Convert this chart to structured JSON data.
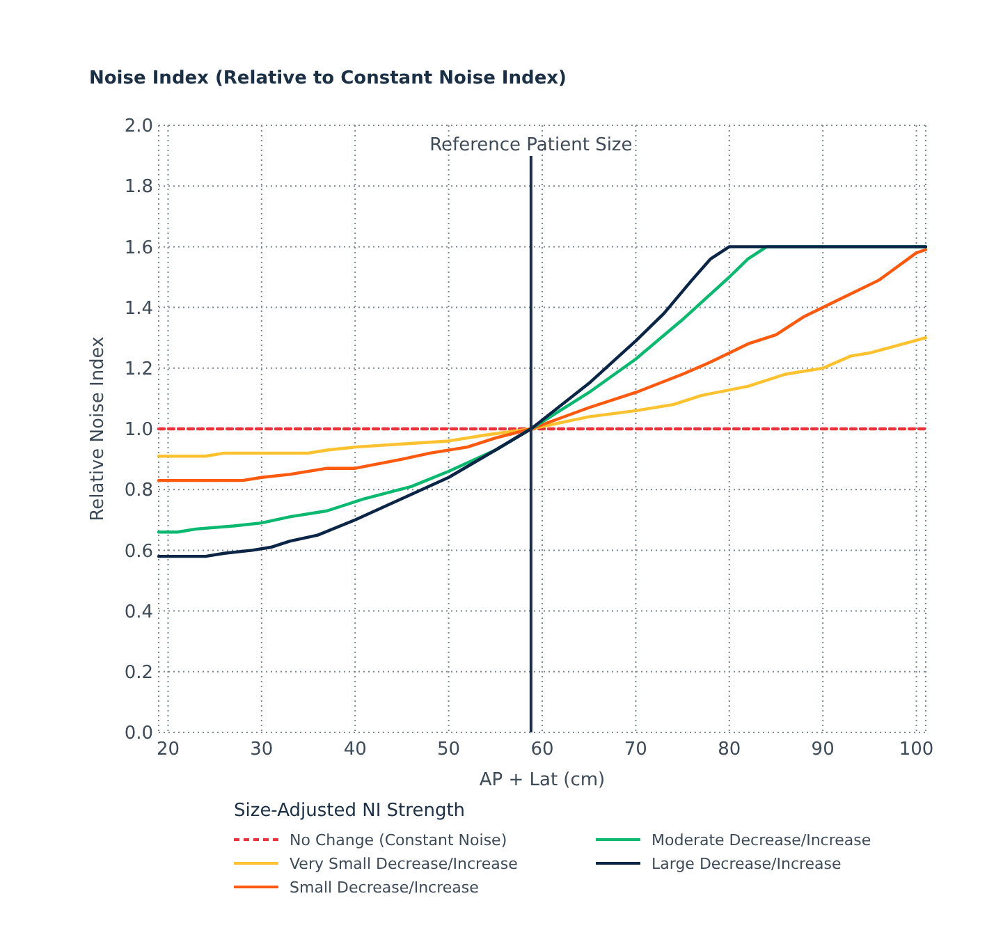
{
  "chart_data": {
    "type": "line",
    "title": "Noise Index (Relative to Constant Noise Index)",
    "xlabel": "AP + Lat (cm)",
    "ylabel": "Relative Noise Index",
    "legend_title": "Size-Adjusted NI Strength",
    "legend": "bottom",
    "grid": true,
    "xlim": [
      19,
      101
    ],
    "ylim": [
      0,
      2
    ],
    "xticks": [
      20,
      30,
      40,
      50,
      60,
      70,
      80,
      90,
      100
    ],
    "yticks": [
      {
        "value": 0,
        "label": "0.0"
      },
      {
        "value": 0.2,
        "label": "0.2"
      },
      {
        "value": 0.4,
        "label": "0.4"
      },
      {
        "value": 0.6,
        "label": "0.6"
      },
      {
        "value": 0.8,
        "label": "0.8"
      },
      {
        "value": 1,
        "label": "1.0"
      },
      {
        "value": 1.2,
        "label": "1.2"
      },
      {
        "value": 1.4,
        "label": "1.4"
      },
      {
        "value": 1.6,
        "label": "1.6"
      },
      {
        "value": 1.8,
        "label": "1.8"
      },
      {
        "value": 2,
        "label": "2.0"
      }
    ],
    "ref_lines": [
      {
        "axis": "x",
        "value": 58.8,
        "label": "Reference Patient Size",
        "color": "#1b2f45"
      }
    ],
    "series": [
      {
        "name": "No Change (Constant Noise)",
        "color": "#e8323c",
        "line_style": "dashed",
        "x": [
          19,
          101
        ],
        "values": [
          1.0,
          1.0
        ]
      },
      {
        "name": "Very Small Decrease/Increase",
        "color": "#fec230",
        "line_style": "solid",
        "x": [
          19,
          24,
          26,
          35,
          37,
          40,
          45,
          50,
          54,
          58.8,
          65,
          70,
          74,
          77,
          82,
          86,
          90,
          93,
          95,
          101
        ],
        "values": [
          0.91,
          0.91,
          0.92,
          0.92,
          0.93,
          0.94,
          0.95,
          0.96,
          0.98,
          1.0,
          1.04,
          1.06,
          1.08,
          1.11,
          1.14,
          1.18,
          1.2,
          1.24,
          1.25,
          1.3
        ]
      },
      {
        "name": "Small Decrease/Increase",
        "color": "#fe5a0f",
        "line_style": "solid",
        "x": [
          19,
          28,
          30,
          33,
          37,
          40,
          45,
          48,
          52,
          55,
          58.8,
          65,
          70,
          75,
          78,
          82,
          85,
          88,
          92,
          96,
          100,
          101
        ],
        "values": [
          0.83,
          0.83,
          0.84,
          0.85,
          0.87,
          0.87,
          0.9,
          0.92,
          0.94,
          0.97,
          1.0,
          1.07,
          1.12,
          1.18,
          1.22,
          1.28,
          1.31,
          1.37,
          1.43,
          1.49,
          1.58,
          1.59
        ]
      },
      {
        "name": "Moderate Decrease/Increase",
        "color": "#0ab870",
        "line_style": "solid",
        "x": [
          19,
          21,
          23,
          27,
          30,
          33,
          37,
          41,
          46,
          50,
          55,
          58.8,
          65,
          70,
          75,
          80,
          82,
          84,
          101
        ],
        "values": [
          0.66,
          0.66,
          0.67,
          0.68,
          0.69,
          0.71,
          0.73,
          0.77,
          0.81,
          0.86,
          0.93,
          1.0,
          1.12,
          1.23,
          1.36,
          1.5,
          1.56,
          1.6,
          1.6
        ]
      },
      {
        "name": "Large Decrease/Increase",
        "color": "#0b2547",
        "line_style": "solid",
        "x": [
          19,
          24,
          26,
          29,
          31,
          33,
          36,
          40,
          45,
          50,
          55,
          58.8,
          65,
          70,
          73,
          76,
          78,
          80,
          101
        ],
        "values": [
          0.58,
          0.58,
          0.59,
          0.6,
          0.61,
          0.63,
          0.65,
          0.7,
          0.77,
          0.84,
          0.93,
          1.0,
          1.15,
          1.29,
          1.38,
          1.49,
          1.56,
          1.6,
          1.6
        ]
      }
    ]
  }
}
